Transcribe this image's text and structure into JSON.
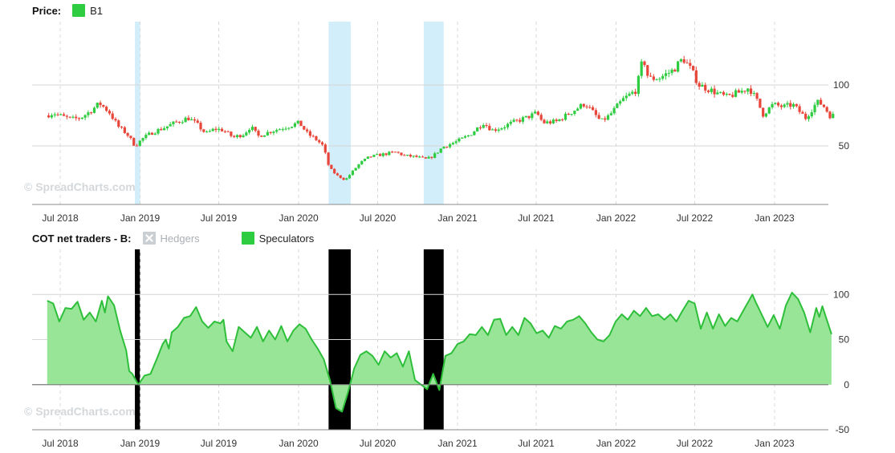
{
  "price_panel": {
    "legend_title": "Price:",
    "legend_item": "B1",
    "legend_color": "#2ecc40",
    "watermark": "© SpreadCharts.com"
  },
  "cot_panel": {
    "legend_title": "COT net traders - B:",
    "legend_items": [
      {
        "label": "Hedgers",
        "color": "#c9cfd3",
        "state": "hidden"
      },
      {
        "label": "Speculators",
        "color": "#2ecc40",
        "state": "visible"
      }
    ],
    "watermark": "© SpreadCharts.com"
  },
  "chart_data": [
    {
      "type": "candlestick",
      "series_name": "B1",
      "x_tick_labels": [
        "Jul 2018",
        "Jan 2019",
        "Jul 2019",
        "Jan 2020",
        "Jul 2020",
        "Jan 2021",
        "Jul 2021",
        "Jan 2022",
        "Jul 2022",
        "Jan 2023"
      ],
      "y_tick_labels": [
        "50",
        "100"
      ],
      "ylim": [
        2,
        152
      ],
      "up_color": "#2ecc40",
      "down_color": "#e8463a",
      "highlight_periods": [
        [
          "2018-12-20",
          "2019-01-01"
        ],
        [
          "2020-03-10",
          "2020-04-30"
        ],
        [
          "2020-10-15",
          "2020-11-30"
        ]
      ],
      "highlight_color": "#d3eefb",
      "price_path": [
        [
          "2018-06-01",
          75
        ],
        [
          "2018-06-20",
          77
        ],
        [
          "2018-07-10",
          74
        ],
        [
          "2018-08-01",
          72
        ],
        [
          "2018-08-20",
          73
        ],
        [
          "2018-09-10",
          78
        ],
        [
          "2018-10-03",
          85
        ],
        [
          "2018-10-25",
          78
        ],
        [
          "2018-11-15",
          66
        ],
        [
          "2018-12-05",
          60
        ],
        [
          "2018-12-24",
          50
        ],
        [
          "2019-01-10",
          56
        ],
        [
          "2019-02-01",
          61
        ],
        [
          "2019-03-01",
          65
        ],
        [
          "2019-04-01",
          70
        ],
        [
          "2019-04-25",
          73
        ],
        [
          "2019-05-15",
          68
        ],
        [
          "2019-06-05",
          60
        ],
        [
          "2019-06-25",
          64
        ],
        [
          "2019-07-15",
          63
        ],
        [
          "2019-08-07",
          57
        ],
        [
          "2019-09-01",
          60
        ],
        [
          "2019-09-16",
          66
        ],
        [
          "2019-10-03",
          58
        ],
        [
          "2019-11-01",
          62
        ],
        [
          "2019-12-01",
          65
        ],
        [
          "2020-01-06",
          69
        ],
        [
          "2020-01-25",
          60
        ],
        [
          "2020-02-15",
          55
        ],
        [
          "2020-03-01",
          50
        ],
        [
          "2020-03-15",
          32
        ],
        [
          "2020-04-01",
          26
        ],
        [
          "2020-04-21",
          22
        ],
        [
          "2020-05-05",
          28
        ],
        [
          "2020-05-25",
          36
        ],
        [
          "2020-06-15",
          41
        ],
        [
          "2020-07-15",
          43
        ],
        [
          "2020-08-15",
          45
        ],
        [
          "2020-09-05",
          42
        ],
        [
          "2020-10-01",
          41
        ],
        [
          "2020-10-25",
          39
        ],
        [
          "2020-11-10",
          42
        ],
        [
          "2020-12-01",
          49
        ],
        [
          "2021-01-05",
          54
        ],
        [
          "2021-02-01",
          59
        ],
        [
          "2021-03-05",
          69
        ],
        [
          "2021-03-25",
          63
        ],
        [
          "2021-04-15",
          65
        ],
        [
          "2021-05-10",
          69
        ],
        [
          "2021-06-10",
          73
        ],
        [
          "2021-07-06",
          77
        ],
        [
          "2021-07-20",
          69
        ],
        [
          "2021-08-20",
          70
        ],
        [
          "2021-09-20",
          77
        ],
        [
          "2021-10-25",
          85
        ],
        [
          "2021-12-01",
          70
        ],
        [
          "2021-12-20",
          75
        ],
        [
          "2022-01-20",
          88
        ],
        [
          "2022-02-20",
          96
        ],
        [
          "2022-03-08",
          123
        ],
        [
          "2022-03-20",
          105
        ],
        [
          "2022-04-15",
          106
        ],
        [
          "2022-05-15",
          112
        ],
        [
          "2022-06-08",
          122
        ],
        [
          "2022-06-25",
          113
        ],
        [
          "2022-07-15",
          100
        ],
        [
          "2022-08-15",
          95
        ],
        [
          "2022-09-15",
          90
        ],
        [
          "2022-10-15",
          94
        ],
        [
          "2022-11-07",
          98
        ],
        [
          "2022-11-25",
          87
        ],
        [
          "2022-12-09",
          76
        ],
        [
          "2023-01-01",
          84
        ],
        [
          "2023-01-25",
          82
        ],
        [
          "2023-02-15",
          84
        ],
        [
          "2023-03-17",
          73
        ],
        [
          "2023-04-12",
          86
        ],
        [
          "2023-04-25",
          84
        ],
        [
          "2023-05-12",
          75
        ]
      ]
    },
    {
      "type": "area",
      "series_name": "Speculators",
      "x_tick_labels": [
        "Jul 2018",
        "Jan 2019",
        "Jul 2019",
        "Jan 2020",
        "Jul 2020",
        "Jan 2021",
        "Jul 2021",
        "Jan 2022",
        "Jul 2022",
        "Jan 2023"
      ],
      "y_tick_labels": [
        "-50",
        "0",
        "50",
        "100"
      ],
      "ylim": [
        -50,
        150
      ],
      "line_color": "#2ebf3a",
      "fill_color": "#98e598",
      "highlight_periods": [
        [
          "2018-12-20",
          "2019-01-01"
        ],
        [
          "2020-03-10",
          "2020-04-30"
        ],
        [
          "2020-10-15",
          "2020-11-30"
        ]
      ],
      "points": [
        [
          "2018-06-01",
          93
        ],
        [
          "2018-06-15",
          90
        ],
        [
          "2018-06-29",
          70
        ],
        [
          "2018-07-13",
          85
        ],
        [
          "2018-07-27",
          84
        ],
        [
          "2018-08-10",
          92
        ],
        [
          "2018-08-24",
          72
        ],
        [
          "2018-09-07",
          80
        ],
        [
          "2018-09-21",
          70
        ],
        [
          "2018-10-05",
          93
        ],
        [
          "2018-10-12",
          80
        ],
        [
          "2018-10-19",
          98
        ],
        [
          "2018-11-02",
          88
        ],
        [
          "2018-11-16",
          60
        ],
        [
          "2018-11-30",
          38
        ],
        [
          "2018-12-07",
          15
        ],
        [
          "2018-12-14",
          12
        ],
        [
          "2018-12-21",
          6
        ],
        [
          "2018-12-28",
          0
        ],
        [
          "2019-01-11",
          10
        ],
        [
          "2019-01-25",
          12
        ],
        [
          "2019-02-08",
          28
        ],
        [
          "2019-02-22",
          45
        ],
        [
          "2019-03-01",
          50
        ],
        [
          "2019-03-08",
          40
        ],
        [
          "2019-03-15",
          58
        ],
        [
          "2019-03-29",
          64
        ],
        [
          "2019-04-12",
          74
        ],
        [
          "2019-04-26",
          76
        ],
        [
          "2019-05-10",
          86
        ],
        [
          "2019-05-24",
          70
        ],
        [
          "2019-06-07",
          63
        ],
        [
          "2019-06-21",
          70
        ],
        [
          "2019-07-05",
          68
        ],
        [
          "2019-07-12",
          72
        ],
        [
          "2019-07-19",
          48
        ],
        [
          "2019-08-02",
          37
        ],
        [
          "2019-08-16",
          64
        ],
        [
          "2019-08-30",
          58
        ],
        [
          "2019-09-13",
          52
        ],
        [
          "2019-09-27",
          64
        ],
        [
          "2019-10-11",
          48
        ],
        [
          "2019-10-25",
          60
        ],
        [
          "2019-11-08",
          50
        ],
        [
          "2019-11-22",
          65
        ],
        [
          "2019-12-06",
          48
        ],
        [
          "2019-12-20",
          60
        ],
        [
          "2020-01-03",
          67
        ],
        [
          "2020-01-17",
          62
        ],
        [
          "2020-01-31",
          50
        ],
        [
          "2020-02-14",
          40
        ],
        [
          "2020-02-28",
          28
        ],
        [
          "2020-03-13",
          5
        ],
        [
          "2020-03-27",
          -26
        ],
        [
          "2020-04-10",
          -30
        ],
        [
          "2020-04-24",
          -8
        ],
        [
          "2020-05-08",
          18
        ],
        [
          "2020-05-22",
          33
        ],
        [
          "2020-06-05",
          37
        ],
        [
          "2020-06-19",
          32
        ],
        [
          "2020-07-03",
          22
        ],
        [
          "2020-07-17",
          37
        ],
        [
          "2020-07-31",
          30
        ],
        [
          "2020-08-14",
          35
        ],
        [
          "2020-08-28",
          20
        ],
        [
          "2020-09-11",
          37
        ],
        [
          "2020-09-25",
          5
        ],
        [
          "2020-10-09",
          0
        ],
        [
          "2020-10-23",
          -5
        ],
        [
          "2020-11-06",
          12
        ],
        [
          "2020-11-20",
          -6
        ],
        [
          "2020-12-04",
          32
        ],
        [
          "2020-12-18",
          35
        ],
        [
          "2021-01-01",
          45
        ],
        [
          "2021-01-15",
          48
        ],
        [
          "2021-01-29",
          56
        ],
        [
          "2021-02-12",
          55
        ],
        [
          "2021-02-26",
          64
        ],
        [
          "2021-03-12",
          55
        ],
        [
          "2021-03-26",
          72
        ],
        [
          "2021-04-09",
          73
        ],
        [
          "2021-04-23",
          55
        ],
        [
          "2021-05-07",
          64
        ],
        [
          "2021-05-21",
          55
        ],
        [
          "2021-06-04",
          74
        ],
        [
          "2021-06-18",
          68
        ],
        [
          "2021-07-02",
          57
        ],
        [
          "2021-07-16",
          60
        ],
        [
          "2021-07-30",
          52
        ],
        [
          "2021-08-13",
          65
        ],
        [
          "2021-08-27",
          62
        ],
        [
          "2021-09-10",
          70
        ],
        [
          "2021-09-24",
          72
        ],
        [
          "2021-10-08",
          76
        ],
        [
          "2021-10-22",
          68
        ],
        [
          "2021-11-05",
          58
        ],
        [
          "2021-11-19",
          50
        ],
        [
          "2021-12-03",
          48
        ],
        [
          "2021-12-17",
          55
        ],
        [
          "2021-12-31",
          70
        ],
        [
          "2022-01-14",
          78
        ],
        [
          "2022-01-28",
          72
        ],
        [
          "2022-02-11",
          82
        ],
        [
          "2022-02-25",
          76
        ],
        [
          "2022-03-11",
          85
        ],
        [
          "2022-03-25",
          76
        ],
        [
          "2022-04-08",
          78
        ],
        [
          "2022-04-22",
          72
        ],
        [
          "2022-05-06",
          78
        ],
        [
          "2022-05-20",
          70
        ],
        [
          "2022-06-03",
          82
        ],
        [
          "2022-06-17",
          93
        ],
        [
          "2022-07-01",
          90
        ],
        [
          "2022-07-15",
          62
        ],
        [
          "2022-07-29",
          80
        ],
        [
          "2022-08-12",
          62
        ],
        [
          "2022-08-26",
          78
        ],
        [
          "2022-09-09",
          65
        ],
        [
          "2022-09-23",
          74
        ],
        [
          "2022-10-07",
          70
        ],
        [
          "2022-10-21",
          82
        ],
        [
          "2022-11-04",
          94
        ],
        [
          "2022-11-11",
          100
        ],
        [
          "2022-11-18",
          92
        ],
        [
          "2022-12-02",
          78
        ],
        [
          "2022-12-16",
          64
        ],
        [
          "2022-12-30",
          77
        ],
        [
          "2023-01-13",
          62
        ],
        [
          "2023-01-27",
          88
        ],
        [
          "2023-02-10",
          102
        ],
        [
          "2023-02-24",
          95
        ],
        [
          "2023-03-10",
          80
        ],
        [
          "2023-03-24",
          58
        ],
        [
          "2023-04-07",
          85
        ],
        [
          "2023-04-14",
          75
        ],
        [
          "2023-04-21",
          87
        ],
        [
          "2023-05-12",
          56
        ]
      ]
    }
  ]
}
